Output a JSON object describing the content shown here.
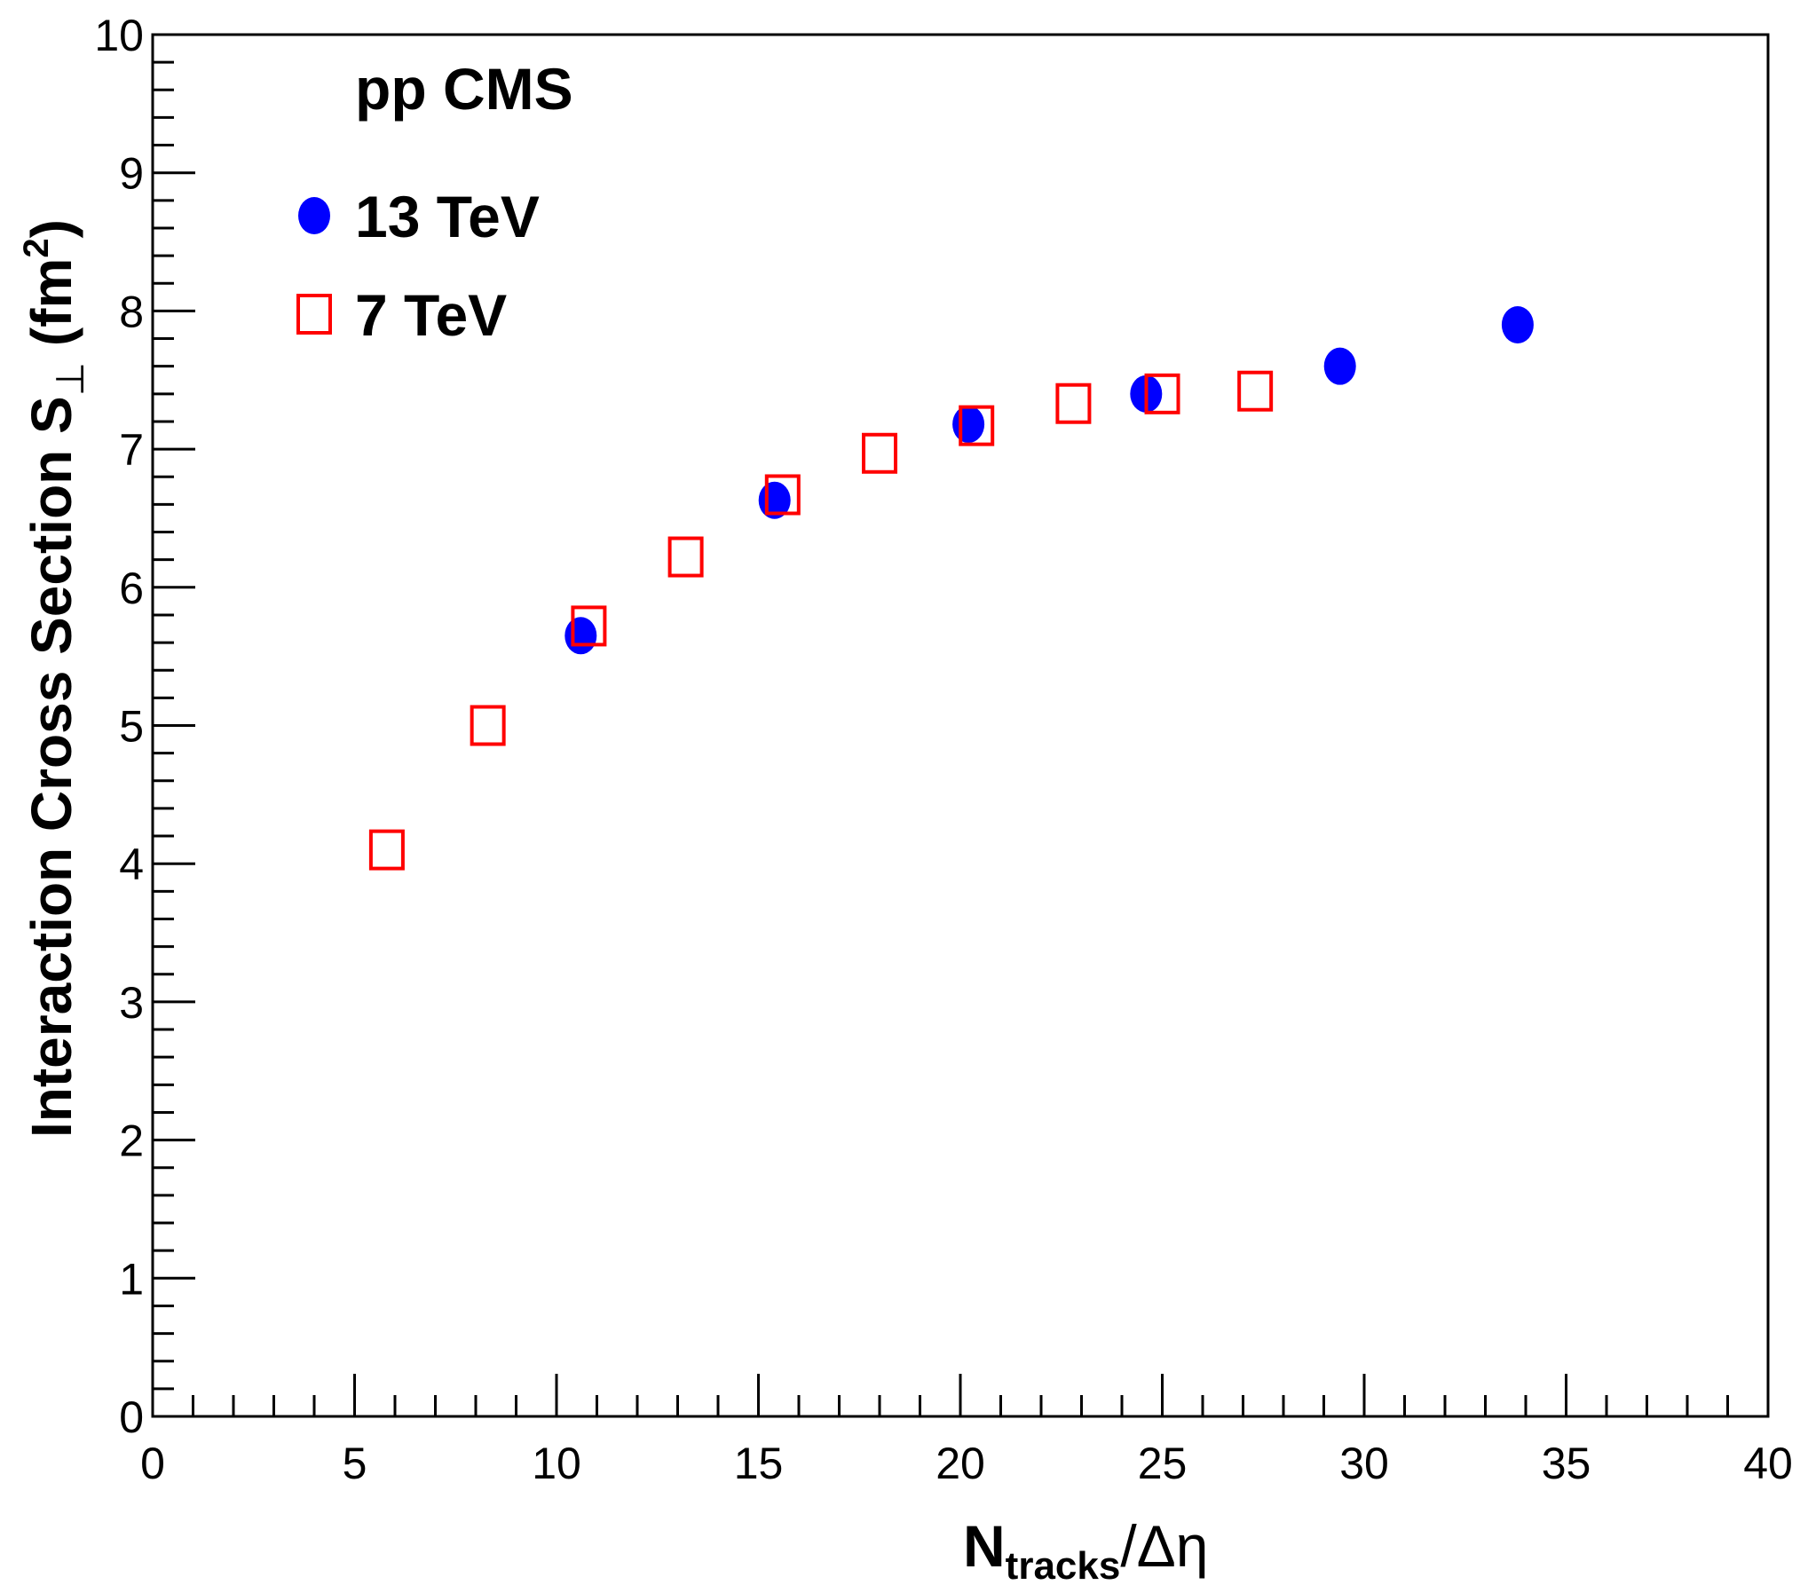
{
  "chart_data": {
    "type": "scatter",
    "title": "",
    "annotation": "pp  CMS",
    "xlabel": {
      "main": "N",
      "subscript": "tracks",
      "suffix": "/Δη"
    },
    "ylabel": {
      "main": "Interaction Cross Section S",
      "subscript": "⊥",
      "unit_open": " (fm",
      "unit_sup": "2",
      "unit_close": ")"
    },
    "xlim": [
      0,
      40
    ],
    "ylim": [
      0,
      10
    ],
    "x_ticks": [
      0,
      5,
      10,
      15,
      20,
      25,
      30,
      35,
      40
    ],
    "y_ticks": [
      0,
      1,
      2,
      3,
      4,
      5,
      6,
      7,
      8,
      9,
      10
    ],
    "grid": false,
    "legend_position": "top-left",
    "series": [
      {
        "name": "13 TeV",
        "marker": "filled-circle",
        "color": "#0000ff",
        "x": [
          10.6,
          15.4,
          20.2,
          24.6,
          29.4,
          33.8
        ],
        "y": [
          5.65,
          6.63,
          7.18,
          7.4,
          7.6,
          7.9
        ]
      },
      {
        "name": "7 TeV",
        "marker": "open-square",
        "color": "#ff0000",
        "x": [
          5.8,
          8.3,
          10.8,
          13.2,
          15.6,
          18.0,
          20.4,
          22.8,
          25.0,
          27.3
        ],
        "y": [
          4.1,
          5.0,
          5.72,
          6.22,
          6.67,
          6.97,
          7.17,
          7.33,
          7.4,
          7.42
        ]
      }
    ]
  }
}
